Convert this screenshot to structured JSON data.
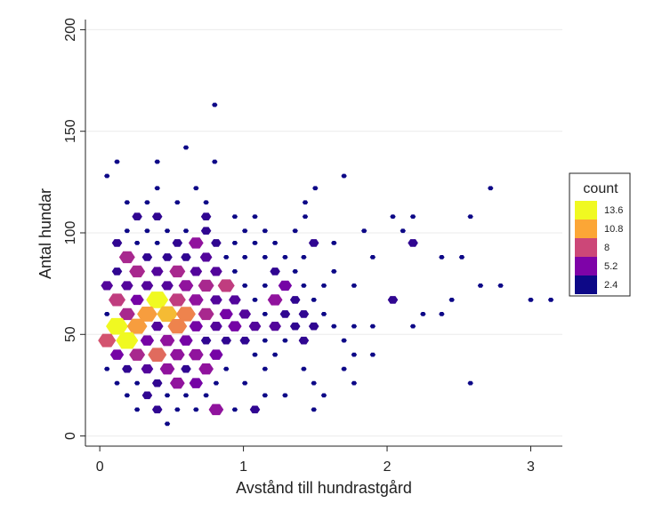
{
  "chart_data": {
    "type": "hexbin",
    "xlabel": "Avstånd till hundrastgård",
    "ylabel": "Antal hundar",
    "xlim": [
      -0.1,
      3.22
    ],
    "ylim": [
      -5,
      205
    ],
    "x_ticks": [
      0,
      1,
      2,
      3
    ],
    "y_ticks": [
      0,
      50,
      100,
      150,
      200
    ],
    "grid": "horizontal",
    "legend": {
      "title": "count",
      "placement": "right",
      "entries": [
        {
          "label": "13.6",
          "color": "#f0f921"
        },
        {
          "label": "10.8",
          "color": "#fca636"
        },
        {
          "label": "8",
          "color": "#cc4778"
        },
        {
          "label": "5.2",
          "color": "#7e03a8"
        },
        {
          "label": "2.4",
          "color": "#0d0887"
        }
      ]
    },
    "color_scale": {
      "min_count": 1,
      "max_count": 14
    },
    "bins": [
      [
        0.8,
        163,
        1
      ],
      [
        0.6,
        142,
        1
      ],
      [
        0.12,
        135,
        1
      ],
      [
        0.4,
        135,
        1
      ],
      [
        0.8,
        135,
        1
      ],
      [
        0.05,
        128,
        1
      ],
      [
        1.7,
        128,
        1
      ],
      [
        0.4,
        122,
        1
      ],
      [
        0.67,
        122,
        1
      ],
      [
        1.5,
        122,
        1
      ],
      [
        2.72,
        122,
        1
      ],
      [
        0.19,
        115,
        1
      ],
      [
        0.33,
        115,
        1
      ],
      [
        0.54,
        115,
        1
      ],
      [
        0.74,
        115,
        1
      ],
      [
        1.43,
        115,
        1
      ],
      [
        0.26,
        108,
        2
      ],
      [
        0.4,
        108,
        2
      ],
      [
        0.74,
        108,
        2
      ],
      [
        0.94,
        108,
        1
      ],
      [
        1.08,
        108,
        1
      ],
      [
        1.43,
        108,
        1
      ],
      [
        2.04,
        108,
        1
      ],
      [
        2.18,
        108,
        1
      ],
      [
        2.58,
        108,
        1
      ],
      [
        0.19,
        101,
        1
      ],
      [
        0.33,
        101,
        1
      ],
      [
        0.47,
        101,
        1
      ],
      [
        0.6,
        101,
        1
      ],
      [
        0.74,
        101,
        2
      ],
      [
        1.01,
        101,
        1
      ],
      [
        1.15,
        101,
        1
      ],
      [
        1.36,
        101,
        1
      ],
      [
        1.84,
        101,
        1
      ],
      [
        2.11,
        101,
        1
      ],
      [
        0.12,
        95,
        2
      ],
      [
        0.26,
        95,
        1
      ],
      [
        0.4,
        95,
        1
      ],
      [
        0.54,
        95,
        2
      ],
      [
        0.67,
        95,
        5
      ],
      [
        0.81,
        95,
        2
      ],
      [
        0.94,
        95,
        1
      ],
      [
        1.08,
        95,
        1
      ],
      [
        1.22,
        95,
        1
      ],
      [
        1.49,
        95,
        2
      ],
      [
        1.63,
        95,
        1
      ],
      [
        2.18,
        95,
        2
      ],
      [
        0.19,
        88,
        6
      ],
      [
        0.33,
        88,
        2
      ],
      [
        0.47,
        88,
        2
      ],
      [
        0.6,
        88,
        2
      ],
      [
        0.74,
        88,
        3
      ],
      [
        0.88,
        88,
        1
      ],
      [
        1.01,
        88,
        1
      ],
      [
        1.15,
        88,
        1
      ],
      [
        1.29,
        88,
        1
      ],
      [
        1.42,
        88,
        1
      ],
      [
        1.9,
        88,
        1
      ],
      [
        2.38,
        88,
        1
      ],
      [
        2.52,
        88,
        1
      ],
      [
        0.12,
        81,
        2
      ],
      [
        0.26,
        81,
        6
      ],
      [
        0.4,
        81,
        3
      ],
      [
        0.54,
        81,
        6
      ],
      [
        0.67,
        81,
        3
      ],
      [
        0.81,
        81,
        3
      ],
      [
        0.94,
        81,
        1
      ],
      [
        1.22,
        81,
        2
      ],
      [
        1.36,
        81,
        1
      ],
      [
        1.63,
        81,
        1
      ],
      [
        0.05,
        74,
        3
      ],
      [
        0.19,
        74,
        3
      ],
      [
        0.33,
        74,
        3
      ],
      [
        0.47,
        74,
        3
      ],
      [
        0.6,
        74,
        5
      ],
      [
        0.74,
        74,
        6
      ],
      [
        0.88,
        74,
        7
      ],
      [
        1.01,
        74,
        1
      ],
      [
        1.15,
        74,
        1
      ],
      [
        1.29,
        74,
        4
      ],
      [
        1.42,
        74,
        1
      ],
      [
        1.56,
        74,
        1
      ],
      [
        1.77,
        74,
        1
      ],
      [
        2.65,
        74,
        1
      ],
      [
        2.79,
        74,
        1
      ],
      [
        0.12,
        67,
        7
      ],
      [
        0.26,
        67,
        4
      ],
      [
        0.4,
        67,
        14
      ],
      [
        0.54,
        67,
        7
      ],
      [
        0.67,
        67,
        5
      ],
      [
        0.81,
        67,
        3
      ],
      [
        0.94,
        67,
        3
      ],
      [
        1.08,
        67,
        1
      ],
      [
        1.22,
        67,
        5
      ],
      [
        1.36,
        67,
        2
      ],
      [
        1.49,
        67,
        1
      ],
      [
        2.04,
        67,
        2
      ],
      [
        2.45,
        67,
        1
      ],
      [
        3.0,
        67,
        1
      ],
      [
        3.14,
        67,
        1
      ],
      [
        0.05,
        60,
        1
      ],
      [
        0.19,
        60,
        6
      ],
      [
        0.33,
        60,
        11
      ],
      [
        0.47,
        60,
        12
      ],
      [
        0.6,
        60,
        10
      ],
      [
        0.74,
        60,
        6
      ],
      [
        0.88,
        60,
        4
      ],
      [
        1.01,
        60,
        3
      ],
      [
        1.15,
        60,
        1
      ],
      [
        1.29,
        60,
        2
      ],
      [
        1.42,
        60,
        2
      ],
      [
        1.56,
        60,
        1
      ],
      [
        2.25,
        60,
        1
      ],
      [
        2.38,
        60,
        1
      ],
      [
        0.12,
        54,
        14
      ],
      [
        0.26,
        54,
        11
      ],
      [
        0.4,
        54,
        3
      ],
      [
        0.54,
        54,
        10
      ],
      [
        0.67,
        54,
        4
      ],
      [
        0.81,
        54,
        3
      ],
      [
        0.94,
        54,
        4
      ],
      [
        1.08,
        54,
        3
      ],
      [
        1.22,
        54,
        3
      ],
      [
        1.36,
        54,
        2
      ],
      [
        1.49,
        54,
        2
      ],
      [
        1.63,
        54,
        1
      ],
      [
        1.77,
        54,
        1
      ],
      [
        1.9,
        54,
        1
      ],
      [
        2.18,
        54,
        1
      ],
      [
        0.05,
        47,
        8
      ],
      [
        0.19,
        47,
        14
      ],
      [
        0.33,
        47,
        4
      ],
      [
        0.47,
        47,
        5
      ],
      [
        0.6,
        47,
        4
      ],
      [
        0.74,
        47,
        2
      ],
      [
        0.88,
        47,
        2
      ],
      [
        1.01,
        47,
        2
      ],
      [
        1.15,
        47,
        1
      ],
      [
        1.29,
        47,
        1
      ],
      [
        1.42,
        47,
        2
      ],
      [
        1.7,
        47,
        1
      ],
      [
        0.12,
        40,
        4
      ],
      [
        0.26,
        40,
        6
      ],
      [
        0.4,
        40,
        9
      ],
      [
        0.54,
        40,
        5
      ],
      [
        0.67,
        40,
        5
      ],
      [
        0.81,
        40,
        4
      ],
      [
        1.08,
        40,
        1
      ],
      [
        1.22,
        40,
        1
      ],
      [
        1.9,
        40,
        1
      ],
      [
        1.77,
        40,
        1
      ],
      [
        0.05,
        33,
        1
      ],
      [
        0.19,
        33,
        2
      ],
      [
        0.33,
        33,
        3
      ],
      [
        0.47,
        33,
        5
      ],
      [
        0.6,
        33,
        2
      ],
      [
        0.74,
        33,
        5
      ],
      [
        0.88,
        33,
        1
      ],
      [
        1.15,
        33,
        1
      ],
      [
        1.42,
        33,
        1
      ],
      [
        1.7,
        33,
        1
      ],
      [
        0.12,
        26,
        1
      ],
      [
        0.26,
        26,
        1
      ],
      [
        0.4,
        26,
        2
      ],
      [
        0.54,
        26,
        5
      ],
      [
        0.67,
        26,
        4
      ],
      [
        0.81,
        26,
        1
      ],
      [
        1.01,
        26,
        1
      ],
      [
        1.49,
        26,
        1
      ],
      [
        1.77,
        26,
        1
      ],
      [
        2.58,
        26,
        1
      ],
      [
        0.19,
        20,
        1
      ],
      [
        0.33,
        20,
        2
      ],
      [
        0.47,
        20,
        1
      ],
      [
        0.6,
        20,
        1
      ],
      [
        0.74,
        20,
        1
      ],
      [
        1.15,
        20,
        1
      ],
      [
        1.29,
        20,
        1
      ],
      [
        1.56,
        20,
        1
      ],
      [
        0.26,
        13,
        1
      ],
      [
        0.4,
        13,
        2
      ],
      [
        0.54,
        13,
        1
      ],
      [
        0.67,
        13,
        1
      ],
      [
        0.81,
        13,
        5
      ],
      [
        0.94,
        13,
        1
      ],
      [
        1.08,
        13,
        2
      ],
      [
        1.49,
        13,
        1
      ],
      [
        0.47,
        6,
        1
      ]
    ]
  }
}
